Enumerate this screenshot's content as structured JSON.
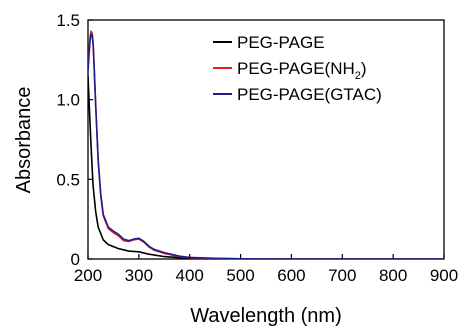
{
  "chart_data": {
    "type": "line",
    "xlabel": "Wavelength (nm)",
    "ylabel": "Absorbance",
    "xlim": [
      200,
      900
    ],
    "ylim": [
      0,
      1.5
    ],
    "xticks": [
      200,
      300,
      400,
      500,
      600,
      700,
      800,
      900
    ],
    "yticks": [
      0,
      0.5,
      1.0,
      1.5
    ],
    "ytick_labels": [
      "0",
      "0.5",
      "1.0",
      "1.5"
    ],
    "grid": false,
    "legend_position": "top-right",
    "series": [
      {
        "name": "PEG-PAGE",
        "legend_main": "PEG-PAGE",
        "legend_sub": "",
        "legend_tail": "",
        "color": "#000000",
        "x": [
          200,
          202,
          205,
          208,
          210,
          215,
          220,
          230,
          240,
          260,
          280,
          300,
          320,
          350,
          380,
          400,
          450,
          500,
          600,
          700,
          800,
          900
        ],
        "y": [
          1.15,
          1.0,
          0.78,
          0.58,
          0.46,
          0.3,
          0.2,
          0.12,
          0.09,
          0.065,
          0.05,
          0.045,
          0.03,
          0.015,
          0.008,
          0.005,
          0.002,
          0.001,
          0.0,
          0.0,
          0.0,
          0.0
        ]
      },
      {
        "name": "PEG-PAGE(NH2)",
        "legend_main": "PEG-PAGE(NH",
        "legend_sub": "2",
        "legend_tail": ")",
        "color": "#e8201f",
        "x": [
          200,
          202,
          204,
          206,
          208,
          210,
          212,
          215,
          220,
          225,
          230,
          240,
          250,
          260,
          270,
          280,
          290,
          300,
          310,
          320,
          330,
          350,
          380,
          400,
          450,
          500,
          600,
          700,
          800,
          900
        ],
        "y": [
          1.2,
          1.3,
          1.39,
          1.43,
          1.42,
          1.36,
          1.22,
          0.98,
          0.62,
          0.4,
          0.27,
          0.19,
          0.165,
          0.145,
          0.115,
          0.11,
          0.12,
          0.125,
          0.105,
          0.075,
          0.055,
          0.035,
          0.015,
          0.008,
          0.003,
          0.001,
          0.0,
          0.0,
          0.0,
          0.0
        ]
      },
      {
        "name": "PEG-PAGE(GTAC)",
        "legend_main": "PEG-PAGE(GTAC)",
        "legend_sub": "",
        "legend_tail": "",
        "color": "#1d1f8f",
        "x": [
          200,
          202,
          204,
          206,
          208,
          210,
          212,
          215,
          220,
          225,
          230,
          240,
          250,
          260,
          270,
          280,
          290,
          300,
          310,
          320,
          330,
          350,
          380,
          400,
          450,
          500,
          600,
          700,
          800,
          900
        ],
        "y": [
          1.18,
          1.28,
          1.37,
          1.41,
          1.41,
          1.35,
          1.21,
          0.97,
          0.62,
          0.41,
          0.28,
          0.2,
          0.175,
          0.155,
          0.125,
          0.115,
          0.125,
          0.13,
          0.11,
          0.08,
          0.06,
          0.04,
          0.018,
          0.01,
          0.004,
          0.001,
          0.0,
          0.0,
          0.0,
          0.0
        ]
      }
    ]
  }
}
